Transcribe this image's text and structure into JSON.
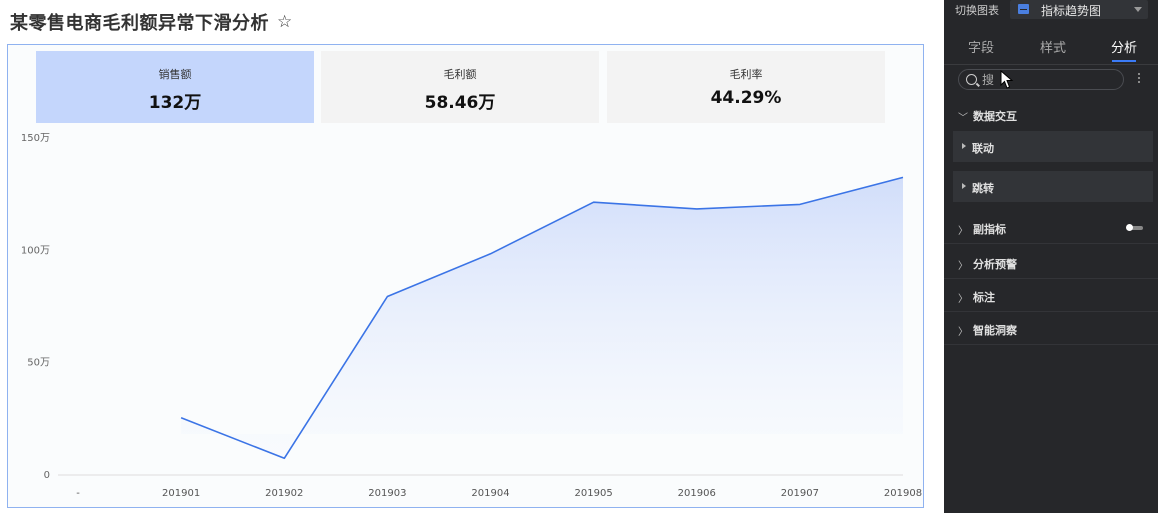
{
  "page": {
    "title": "某零售电商毛利额异常下滑分析",
    "star_icon": "star-outline-icon"
  },
  "kpis": [
    {
      "label": "销售额",
      "value": "132万",
      "active": true
    },
    {
      "label": "毛利额",
      "value": "58.46万",
      "active": false
    },
    {
      "label": "毛利率",
      "value": "44.29%",
      "active": false
    }
  ],
  "chart_data": {
    "type": "area",
    "categories": [
      "-",
      "201901",
      "201902",
      "201903",
      "201904",
      "201905",
      "201906",
      "201907",
      "201908"
    ],
    "series": [
      {
        "values": [
          null,
          250000,
          70000,
          790000,
          980000,
          1210000,
          1180000,
          1200000,
          1320000
        ]
      }
    ],
    "ylim": [
      0,
      1500000
    ],
    "yticks": [
      {
        "value": 0,
        "label": "0"
      },
      {
        "value": 500000,
        "label": "50万"
      },
      {
        "value": 1000000,
        "label": "100万"
      },
      {
        "value": 1500000,
        "label": "150万"
      }
    ],
    "colors": {
      "line": "#3b74e6",
      "fill_top": "#cfdcfa",
      "fill_bottom": "#f6f9fe"
    },
    "grid": false
  },
  "panel": {
    "switch_label": "切换图表",
    "chart_type_value": "指标趋势图",
    "chart_type_icon": "chart-type-icon",
    "tabs": [
      "字段",
      "样式",
      "分析"
    ],
    "active_tab": "分析",
    "search_placeholder": "搜",
    "sections": {
      "data_interaction": "数据交互",
      "linkage": "联动",
      "jump": "跳转",
      "sub_indicator": "副指标",
      "alert": "分析预警",
      "annotation": "标注",
      "insight": "智能洞察"
    },
    "accent": "#3b7bf6"
  }
}
